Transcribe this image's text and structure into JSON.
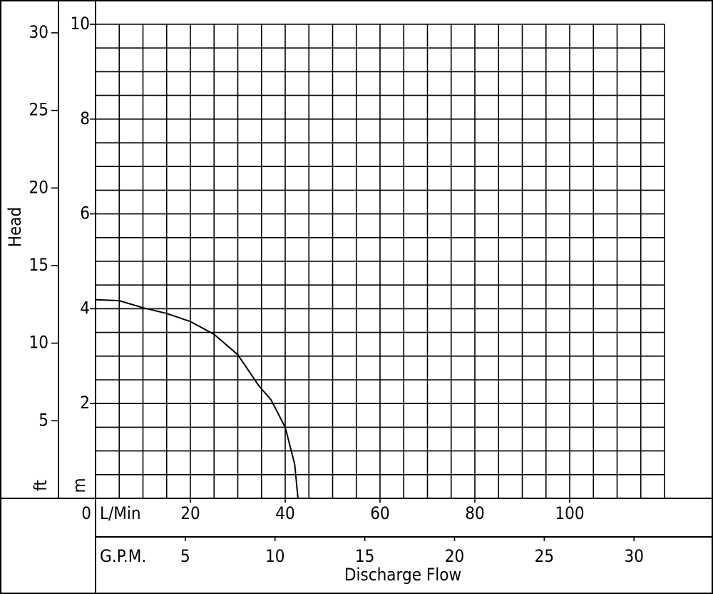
{
  "chart_data": {
    "type": "line",
    "x_label": "Discharge Flow",
    "y_label": "Head",
    "x_unit": "L/Min",
    "x2_unit": "G.P.M.",
    "y_unit": "m",
    "y2_unit": "ft",
    "xlim": [
      0,
      120
    ],
    "xticks": [
      0,
      20,
      40,
      60,
      80,
      100
    ],
    "xgrid": [
      0,
      5,
      10,
      15,
      20,
      25,
      30,
      35,
      40,
      45,
      50,
      55,
      60,
      65,
      70,
      75,
      80,
      85,
      90,
      95,
      100,
      105,
      110,
      115,
      120
    ],
    "x2lim": [
      0,
      31.7
    ],
    "x2ticks": [
      5,
      10,
      15,
      20,
      25,
      30
    ],
    "ylim": [
      0,
      10
    ],
    "yticks": [
      2,
      4,
      6,
      8,
      10
    ],
    "ygrid": [
      0,
      0.5,
      1,
      1.5,
      2,
      2.5,
      3,
      3.5,
      4,
      4.5,
      5,
      5.5,
      6,
      6.5,
      7,
      7.5,
      8,
      8.5,
      9,
      9.5,
      10
    ],
    "y2lim": [
      0,
      30.55
    ],
    "y2ticks": [
      5,
      10,
      15,
      20,
      25,
      30
    ],
    "grid": true,
    "series": [
      {
        "color": "#000000",
        "x": [
          0,
          5,
          10,
          15,
          20,
          25,
          30,
          34.4,
          37,
          40,
          42,
          42.7
        ],
        "values": [
          4.19,
          4.17,
          4.02,
          3.9,
          3.73,
          3.46,
          3.03,
          2.38,
          2.08,
          1.5,
          0.72,
          0
        ]
      }
    ]
  }
}
